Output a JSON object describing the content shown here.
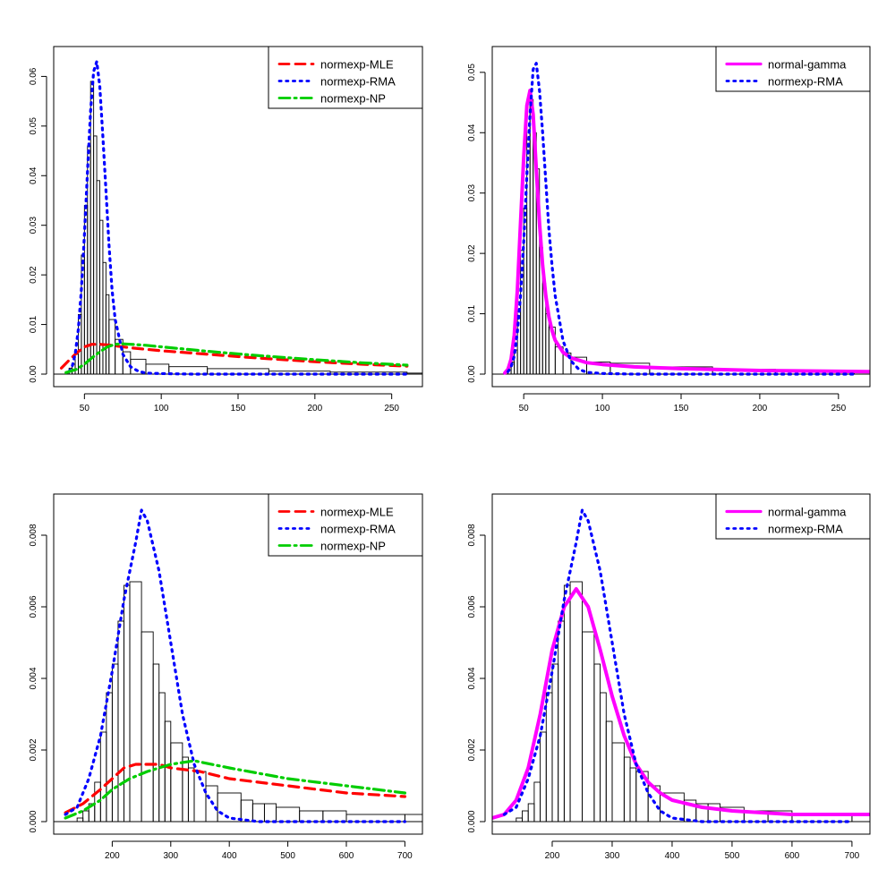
{
  "figure": {
    "background": "#ffffff"
  },
  "chart_data": [
    {
      "type": "histogram+density",
      "panel": "top-left",
      "xlim": [
        30,
        270
      ],
      "ylim": [
        0,
        0.0635
      ],
      "xticks": [
        50,
        100,
        150,
        200,
        250
      ],
      "xtick_labels": [
        "50",
        "100",
        "150",
        "200",
        "250"
      ],
      "yticks": [
        0,
        0.01,
        0.02,
        0.03,
        0.04,
        0.05,
        0.06
      ],
      "ytick_labels": [
        "0.00",
        "0.01",
        "0.02",
        "0.03",
        "0.04",
        "0.05",
        "0.06"
      ],
      "histogram": {
        "breaks": [
          38,
          40,
          42,
          44,
          46,
          48,
          50,
          52,
          54,
          56,
          58,
          60,
          62,
          64,
          66,
          70,
          75,
          80,
          90,
          105,
          130,
          170,
          210,
          260,
          300
        ],
        "density": [
          0.0005,
          0.0012,
          0.002,
          0.004,
          0.012,
          0.024,
          0.034,
          0.046,
          0.059,
          0.048,
          0.039,
          0.031,
          0.0225,
          0.016,
          0.011,
          0.007,
          0.0045,
          0.003,
          0.002,
          0.0015,
          0.0011,
          0.0006,
          0.0004,
          0.0002
        ]
      },
      "series": [
        {
          "name": "normexp-MLE",
          "color": "#ff0000",
          "style": "dashed",
          "x": [
            35,
            40,
            45,
            50,
            55,
            60,
            65,
            70,
            80,
            100,
            130,
            160,
            200,
            230,
            260
          ],
          "y": [
            0.0012,
            0.0028,
            0.0043,
            0.0055,
            0.006,
            0.006,
            0.0059,
            0.0057,
            0.0053,
            0.0047,
            0.004,
            0.0033,
            0.0025,
            0.002,
            0.0016
          ]
        },
        {
          "name": "normexp-RMA",
          "color": "#0000ff",
          "style": "dotted",
          "x": [
            40,
            42,
            44,
            46,
            48,
            50,
            52,
            54,
            56,
            58,
            60,
            62,
            64,
            66,
            68,
            70,
            75,
            80,
            85,
            90,
            100,
            120,
            150,
            200,
            260
          ],
          "y": [
            0.0005,
            0.0015,
            0.004,
            0.009,
            0.017,
            0.028,
            0.041,
            0.053,
            0.061,
            0.063,
            0.058,
            0.048,
            0.037,
            0.026,
            0.017,
            0.011,
            0.004,
            0.0015,
            0.0006,
            0.0002,
            0.0001,
            0.0,
            0.0,
            0.0,
            0.0
          ]
        },
        {
          "name": "normexp-NP",
          "color": "#00cd00",
          "style": "dotdash",
          "x": [
            38,
            45,
            50,
            55,
            60,
            65,
            70,
            75,
            80,
            90,
            100,
            130,
            160,
            200,
            230,
            260
          ],
          "y": [
            0.0003,
            0.001,
            0.002,
            0.0033,
            0.0045,
            0.0055,
            0.006,
            0.0061,
            0.006,
            0.0058,
            0.0055,
            0.0046,
            0.0038,
            0.0029,
            0.0023,
            0.0018
          ]
        }
      ],
      "legend": {
        "position": "top-right",
        "entries": [
          {
            "label": "normexp-MLE",
            "color": "#ff0000",
            "style": "dashed"
          },
          {
            "label": "normexp-RMA",
            "color": "#0000ff",
            "style": "dotted"
          },
          {
            "label": "normexp-NP",
            "color": "#00cd00",
            "style": "dotdash"
          }
        ]
      }
    },
    {
      "type": "histogram+density",
      "panel": "top-right",
      "xlim": [
        30,
        270
      ],
      "ylim": [
        0,
        0.0522
      ],
      "xticks": [
        50,
        100,
        150,
        200,
        250
      ],
      "xtick_labels": [
        "50",
        "100",
        "150",
        "200",
        "250"
      ],
      "yticks": [
        0,
        0.01,
        0.02,
        0.03,
        0.04,
        0.05
      ],
      "ytick_labels": [
        "0.00",
        "0.01",
        "0.02",
        "0.03",
        "0.04",
        "0.05"
      ],
      "histogram": {
        "breaks": [
          38,
          40,
          42,
          44,
          46,
          48,
          50,
          52,
          54,
          56,
          58,
          60,
          62,
          64,
          66,
          70,
          75,
          80,
          90,
          105,
          130,
          170,
          210,
          260,
          300
        ],
        "density": [
          0.0005,
          0.0012,
          0.002,
          0.004,
          0.012,
          0.0205,
          0.0275,
          0.0455,
          0.0455,
          0.04,
          0.034,
          0.021,
          0.015,
          0.01,
          0.0078,
          0.0045,
          0.0035,
          0.0028,
          0.002,
          0.0018,
          0.0012,
          0.0008,
          0.0005,
          0.0003
        ]
      },
      "series": [
        {
          "name": "normal-gamma",
          "color": "#ff00ff",
          "style": "solid",
          "x": [
            38,
            40,
            42,
            44,
            46,
            48,
            50,
            52,
            54,
            56,
            58,
            60,
            62,
            64,
            66,
            68,
            70,
            75,
            80,
            90,
            100,
            120,
            150,
            200,
            270
          ],
          "y": [
            0.0002,
            0.0008,
            0.0025,
            0.0065,
            0.014,
            0.025,
            0.036,
            0.0445,
            0.047,
            0.043,
            0.034,
            0.025,
            0.018,
            0.013,
            0.0095,
            0.0072,
            0.0056,
            0.0036,
            0.0027,
            0.0019,
            0.0016,
            0.0012,
            0.0009,
            0.0006,
            0.0004
          ]
        },
        {
          "name": "normexp-RMA",
          "color": "#0000ff",
          "style": "dotted",
          "x": [
            40,
            42,
            44,
            46,
            48,
            50,
            52,
            54,
            56,
            58,
            60,
            62,
            64,
            66,
            68,
            70,
            75,
            80,
            85,
            90,
            100,
            120,
            150,
            200,
            260
          ],
          "y": [
            0.0004,
            0.0012,
            0.003,
            0.007,
            0.013,
            0.022,
            0.033,
            0.043,
            0.0505,
            0.0515,
            0.047,
            0.04,
            0.032,
            0.024,
            0.018,
            0.013,
            0.0055,
            0.0022,
            0.0008,
            0.0003,
            0.0001,
            0.0,
            0.0,
            0.0,
            0.0
          ]
        }
      ],
      "legend": {
        "position": "top-right",
        "entries": [
          {
            "label": "normal-gamma",
            "color": "#ff00ff",
            "style": "solid"
          },
          {
            "label": "normexp-RMA",
            "color": "#0000ff",
            "style": "dotted"
          }
        ]
      }
    },
    {
      "type": "histogram+density",
      "panel": "bottom-left",
      "xlim": [
        100,
        730
      ],
      "ylim": [
        0,
        0.0088
      ],
      "xticks": [
        200,
        300,
        400,
        500,
        600,
        700
      ],
      "xtick_labels": [
        "200",
        "300",
        "400",
        "500",
        "600",
        "700"
      ],
      "yticks": [
        0,
        0.002,
        0.004,
        0.006,
        0.008
      ],
      "ytick_labels": [
        "0.000",
        "0.002",
        "0.004",
        "0.006",
        "0.008"
      ],
      "histogram": {
        "breaks": [
          140,
          150,
          160,
          170,
          180,
          190,
          200,
          210,
          220,
          230,
          250,
          270,
          280,
          290,
          300,
          320,
          330,
          340,
          360,
          380,
          420,
          440,
          460,
          480,
          520,
          560,
          600,
          700,
          730
        ],
        "density": [
          0.0001,
          0.0003,
          0.0005,
          0.0011,
          0.0025,
          0.0036,
          0.0044,
          0.0056,
          0.0066,
          0.0067,
          0.0053,
          0.0044,
          0.0036,
          0.0028,
          0.0022,
          0.0018,
          0.0015,
          0.0014,
          0.001,
          0.0008,
          0.0006,
          0.0005,
          0.0005,
          0.0004,
          0.0003,
          0.0003,
          0.0002,
          0.0002
        ]
      },
      "series": [
        {
          "name": "normexp-MLE",
          "color": "#ff0000",
          "style": "dashed",
          "x": [
            120,
            150,
            180,
            200,
            220,
            240,
            260,
            280,
            300,
            350,
            400,
            500,
            600,
            700
          ],
          "y": [
            0.00025,
            0.0005,
            0.0009,
            0.0012,
            0.0015,
            0.0016,
            0.0016,
            0.0016,
            0.0015,
            0.0014,
            0.0012,
            0.001,
            0.0008,
            0.0007
          ]
        },
        {
          "name": "normexp-RMA",
          "color": "#0000ff",
          "style": "dotted",
          "x": [
            120,
            140,
            160,
            180,
            200,
            220,
            240,
            250,
            260,
            280,
            300,
            320,
            340,
            360,
            380,
            400,
            450,
            500,
            600,
            700
          ],
          "y": [
            0.0002,
            0.0004,
            0.0012,
            0.0024,
            0.0042,
            0.0062,
            0.0078,
            0.0087,
            0.0084,
            0.007,
            0.005,
            0.003,
            0.0016,
            0.0008,
            0.0003,
            0.0001,
            0.0,
            0.0,
            0.0,
            0.0
          ]
        },
        {
          "name": "normexp-NP",
          "color": "#00cd00",
          "style": "dotdash",
          "x": [
            120,
            150,
            180,
            200,
            230,
            260,
            300,
            340,
            400,
            500,
            600,
            700
          ],
          "y": [
            0.0001,
            0.0003,
            0.0006,
            0.0009,
            0.0012,
            0.0014,
            0.0016,
            0.0017,
            0.0015,
            0.0012,
            0.001,
            0.0008
          ]
        }
      ],
      "legend": {
        "position": "top-right",
        "entries": [
          {
            "label": "normexp-MLE",
            "color": "#ff0000",
            "style": "dashed"
          },
          {
            "label": "normexp-RMA",
            "color": "#0000ff",
            "style": "dotted"
          },
          {
            "label": "normexp-NP",
            "color": "#00cd00",
            "style": "dotdash"
          }
        ]
      }
    },
    {
      "type": "histogram+density",
      "panel": "bottom-right",
      "xlim": [
        100,
        730
      ],
      "ylim": [
        0,
        0.0088
      ],
      "xticks": [
        200,
        300,
        400,
        500,
        600,
        700
      ],
      "xtick_labels": [
        "200",
        "300",
        "400",
        "500",
        "600",
        "700"
      ],
      "yticks": [
        0,
        0.002,
        0.004,
        0.006,
        0.008
      ],
      "ytick_labels": [
        "0.000",
        "0.002",
        "0.004",
        "0.006",
        "0.008"
      ],
      "histogram": {
        "breaks": [
          140,
          150,
          160,
          170,
          180,
          190,
          200,
          210,
          220,
          230,
          250,
          270,
          280,
          290,
          300,
          320,
          330,
          340,
          360,
          380,
          420,
          440,
          460,
          480,
          520,
          560,
          600,
          700,
          730
        ],
        "density": [
          0.0001,
          0.0003,
          0.0005,
          0.0011,
          0.0025,
          0.0036,
          0.0044,
          0.0056,
          0.0066,
          0.0067,
          0.0053,
          0.0044,
          0.0036,
          0.0028,
          0.0022,
          0.0018,
          0.0015,
          0.0014,
          0.001,
          0.0008,
          0.0006,
          0.0005,
          0.0005,
          0.0004,
          0.0003,
          0.0003,
          0.0002,
          0.0002
        ]
      },
      "series": [
        {
          "name": "normal-gamma",
          "color": "#ff00ff",
          "style": "solid",
          "x": [
            100,
            120,
            140,
            160,
            180,
            200,
            220,
            240,
            260,
            280,
            300,
            320,
            340,
            360,
            380,
            400,
            450,
            500,
            600,
            730
          ],
          "y": [
            0.0001,
            0.0002,
            0.0006,
            0.0015,
            0.003,
            0.0048,
            0.006,
            0.0065,
            0.006,
            0.0048,
            0.0035,
            0.0024,
            0.0016,
            0.0011,
            0.0008,
            0.0006,
            0.0004,
            0.0003,
            0.0002,
            0.0002
          ]
        },
        {
          "name": "normexp-RMA",
          "color": "#0000ff",
          "style": "dotted",
          "x": [
            120,
            140,
            160,
            180,
            200,
            220,
            240,
            250,
            260,
            280,
            300,
            320,
            340,
            360,
            380,
            400,
            450,
            500,
            600,
            700
          ],
          "y": [
            0.0002,
            0.0004,
            0.0012,
            0.0024,
            0.0042,
            0.0062,
            0.0078,
            0.0087,
            0.0084,
            0.007,
            0.005,
            0.003,
            0.0016,
            0.0008,
            0.0003,
            0.0001,
            0.0,
            0.0,
            0.0,
            0.0
          ]
        }
      ],
      "legend": {
        "position": "top-right",
        "entries": [
          {
            "label": "normal-gamma",
            "color": "#ff00ff",
            "style": "solid"
          },
          {
            "label": "normexp-RMA",
            "color": "#0000ff",
            "style": "dotted"
          }
        ]
      }
    }
  ]
}
